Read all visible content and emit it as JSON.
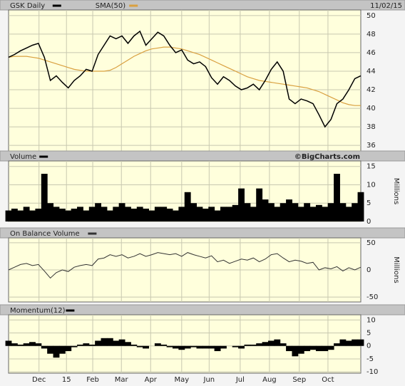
{
  "chart_data": [
    {
      "type": "line",
      "date": "11/02/15",
      "series": [
        {
          "name": "GSK Daily",
          "color": "#000000",
          "values": [
            45.5,
            45.8,
            46.2,
            46.5,
            46.8,
            47.0,
            45.5,
            43.0,
            43.5,
            42.8,
            42.2,
            43.0,
            43.5,
            44.2,
            44.0,
            45.8,
            46.8,
            47.8,
            47.5,
            47.8,
            47.0,
            47.8,
            48.3,
            46.8,
            47.5,
            48.2,
            47.8,
            46.8,
            46.0,
            46.3,
            45.2,
            44.8,
            45.0,
            44.5,
            43.3,
            42.6,
            43.4,
            43.0,
            42.4,
            42.0,
            42.2,
            42.6,
            42.0,
            43.0,
            44.2,
            45.0,
            44.0,
            41.0,
            40.5,
            41.0,
            40.8,
            40.5,
            39.3,
            38.0,
            38.8,
            40.5,
            41.0,
            42.0,
            43.2,
            43.5
          ]
        },
        {
          "name": "SMA(50)",
          "color": "#d9a040",
          "values": [
            45.5,
            45.6,
            45.6,
            45.6,
            45.5,
            45.4,
            45.2,
            45.0,
            44.8,
            44.6,
            44.4,
            44.2,
            44.1,
            44.0,
            44.0,
            44.0,
            44.0,
            44.1,
            44.4,
            44.8,
            45.2,
            45.6,
            45.9,
            46.2,
            46.4,
            46.5,
            46.6,
            46.6,
            46.5,
            46.4,
            46.2,
            46.0,
            45.8,
            45.5,
            45.2,
            44.9,
            44.6,
            44.3,
            44.0,
            43.7,
            43.4,
            43.2,
            43.0,
            42.9,
            42.8,
            42.7,
            42.6,
            42.5,
            42.4,
            42.3,
            42.2,
            42.0,
            41.8,
            41.5,
            41.2,
            40.9,
            40.6,
            40.4,
            40.3,
            40.3
          ]
        }
      ],
      "xlim": [
        0,
        59
      ],
      "xticks": [
        {
          "value": 5.1,
          "label": "Dec"
        },
        {
          "value": 9.7,
          "label": "15"
        },
        {
          "value": 14.1,
          "label": "Feb"
        },
        {
          "value": 18.9,
          "label": "Mar"
        },
        {
          "value": 23.8,
          "label": "Apr"
        },
        {
          "value": 29.0,
          "label": "May"
        },
        {
          "value": 33.6,
          "label": "Jun"
        },
        {
          "value": 38.8,
          "label": "Jul"
        },
        {
          "value": 43.7,
          "label": "Aug"
        },
        {
          "value": 48.7,
          "label": "Sep"
        },
        {
          "value": 53.5,
          "label": "Oct"
        }
      ],
      "ylim": [
        35.4,
        50.6
      ],
      "yticks": [
        36,
        38,
        40,
        42,
        44,
        46,
        48,
        50
      ],
      "grid": true
    },
    {
      "type": "bar",
      "title": "Volume",
      "credit": "©BigCharts.com",
      "ylabel": "Millions",
      "color": "#000000",
      "values": [
        3,
        3.5,
        3,
        4,
        3,
        3.5,
        13,
        5,
        4,
        3.5,
        3,
        3.5,
        4,
        3,
        4,
        5,
        4,
        3,
        4,
        5,
        4,
        3.5,
        4,
        3.5,
        3,
        4,
        4,
        3.5,
        3,
        4,
        8,
        5,
        4,
        3.5,
        4,
        3,
        4,
        4,
        4.5,
        9,
        5,
        4,
        9,
        6,
        5,
        4,
        5,
        6,
        5,
        4,
        5,
        4,
        4.5,
        4,
        5,
        13,
        5,
        4,
        5,
        8
      ],
      "ylim": [
        0,
        16.5
      ],
      "yticks": [
        0,
        5,
        10,
        15
      ],
      "grid": true
    },
    {
      "type": "line",
      "title": "On Balance Volume",
      "ylabel": "Millions",
      "color": "#333333",
      "values": [
        0,
        5,
        10,
        12,
        8,
        10,
        -2,
        -15,
        -5,
        0,
        -3,
        5,
        8,
        10,
        8,
        20,
        22,
        28,
        25,
        28,
        22,
        25,
        30,
        25,
        28,
        32,
        30,
        28,
        30,
        25,
        32,
        28,
        25,
        22,
        26,
        15,
        18,
        12,
        16,
        20,
        18,
        22,
        15,
        20,
        28,
        30,
        22,
        15,
        18,
        16,
        12,
        14,
        0,
        4,
        2,
        6,
        -2,
        4,
        0,
        5
      ],
      "ylim": [
        -59,
        59
      ],
      "yticks": [
        -50,
        0,
        50
      ],
      "grid": true
    },
    {
      "type": "area",
      "title": "Momentum(12)",
      "color": "#000000",
      "values": [
        2,
        1,
        0.5,
        1,
        1.5,
        1,
        -1,
        -3,
        -4.5,
        -3,
        -2,
        -0.5,
        0.5,
        1,
        0.5,
        2,
        3,
        3,
        2,
        2.5,
        1.5,
        0.5,
        -0.5,
        -1,
        0,
        1,
        0.5,
        -0.5,
        -1,
        -1.5,
        -1,
        -0.5,
        -1,
        -1,
        -1,
        -2,
        -1,
        0,
        -0.5,
        -1,
        0.5,
        0.5,
        1,
        1.5,
        2,
        2.5,
        1,
        -2,
        -4,
        -3,
        -2,
        -1.5,
        -2,
        -2,
        -1.5,
        1,
        2.5,
        2,
        2.5,
        2.5
      ],
      "ylim": [
        -10.5,
        12
      ],
      "yticks": [
        -10,
        -5,
        0,
        5,
        10
      ],
      "grid": true
    }
  ]
}
